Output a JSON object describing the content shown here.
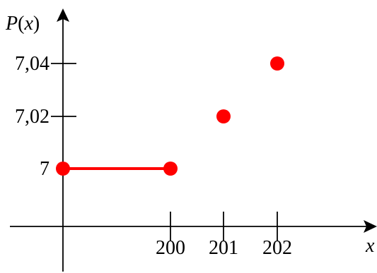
{
  "chart_data": {
    "type": "scatter",
    "xlabel": "x",
    "ylabel": {
      "func": "P",
      "open": "(",
      "var": "x",
      "close": ")"
    },
    "x_ticks": [
      {
        "value": 200,
        "label": "200"
      },
      {
        "value": 201,
        "label": "201"
      },
      {
        "value": 202,
        "label": "202"
      }
    ],
    "y_ticks": [
      {
        "value": 7,
        "label": "7"
      },
      {
        "value": 7.02,
        "label": "7,02"
      },
      {
        "value": 7.04,
        "label": "7,04"
      }
    ],
    "segments": [
      {
        "x": [
          0,
          200
        ],
        "y": [
          7,
          7
        ]
      }
    ],
    "points": [
      {
        "x": 0,
        "y": 7
      },
      {
        "x": 200,
        "y": 7
      },
      {
        "x": 201,
        "y": 7.02
      },
      {
        "x": 202,
        "y": 7.04
      }
    ],
    "grid": false,
    "colors": {
      "series": "#ff0000",
      "axes": "#000000"
    }
  }
}
